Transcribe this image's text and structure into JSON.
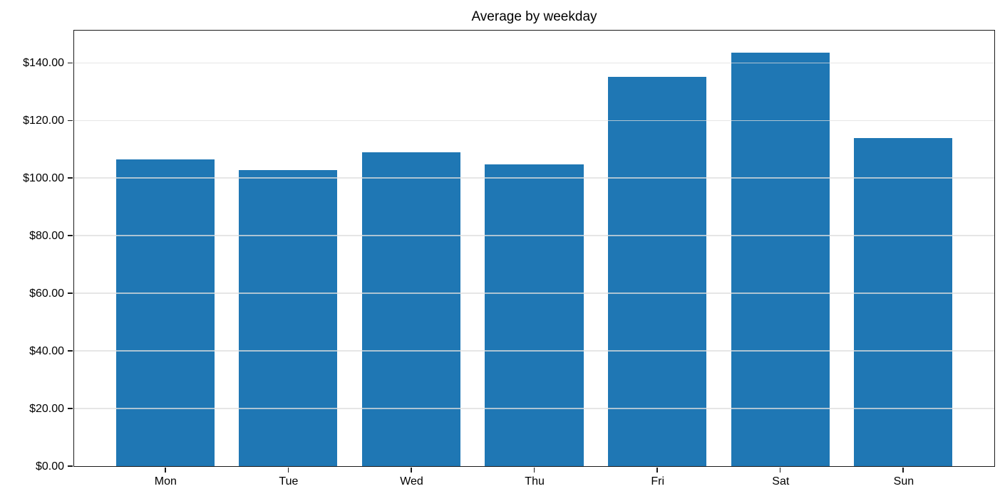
{
  "chart_data": {
    "type": "bar",
    "title": "Average by weekday",
    "categories": [
      "Mon",
      "Tue",
      "Wed",
      "Thu",
      "Fri",
      "Sat",
      "Sun"
    ],
    "values": [
      106.6,
      102.9,
      109.0,
      104.8,
      135.2,
      143.5,
      113.8
    ],
    "xlabel": "",
    "ylabel": "",
    "y_ticks": {
      "values": [
        0,
        20,
        40,
        60,
        80,
        100,
        120,
        140
      ],
      "labels": [
        "$0.00",
        "$20.00",
        "$40.00",
        "$60.00",
        "$80.00",
        "$100.00",
        "$120.00",
        "$140.00"
      ]
    },
    "ylim": [
      0,
      151.2
    ],
    "xlim": [
      -0.74,
      6.74
    ],
    "bar_width_fraction": 0.8,
    "grid": true,
    "legend": "none",
    "colors": {
      "bar": "#1f77b4",
      "gridline": "rgba(222,222,222,0.75)",
      "spine": "#1a1a1a",
      "background": "#ffffff",
      "text": "#000000"
    }
  }
}
